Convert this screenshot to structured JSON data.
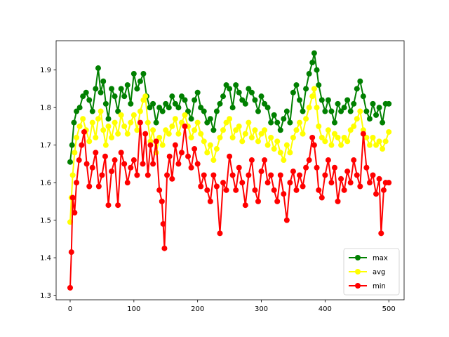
{
  "chart_data": {
    "type": "line",
    "title": "",
    "xlabel": "",
    "ylabel": "",
    "xlim": [
      -22,
      524
    ],
    "ylim": [
      1.288,
      1.978
    ],
    "xticks": [
      0,
      100,
      200,
      300,
      400,
      500
    ],
    "yticks": [
      1.3,
      1.4,
      1.5,
      1.6,
      1.7,
      1.8,
      1.9
    ],
    "ytick_labels": [
      "1.3",
      "1.4",
      "1.5",
      "1.6",
      "1.7",
      "1.8",
      "1.9"
    ],
    "grid": false,
    "legend_position": "lower-right",
    "series": [
      {
        "name": "max",
        "color": "#008000",
        "points": [
          [
            0,
            1.655
          ],
          [
            3,
            1.7
          ],
          [
            6,
            1.76
          ],
          [
            10,
            1.79
          ],
          [
            15,
            1.8
          ],
          [
            20,
            1.83
          ],
          [
            25,
            1.84
          ],
          [
            30,
            1.82
          ],
          [
            35,
            1.79
          ],
          [
            40,
            1.85
          ],
          [
            44,
            1.905
          ],
          [
            48,
            1.84
          ],
          [
            52,
            1.87
          ],
          [
            56,
            1.81
          ],
          [
            60,
            1.77
          ],
          [
            65,
            1.85
          ],
          [
            70,
            1.83
          ],
          [
            75,
            1.79
          ],
          [
            80,
            1.85
          ],
          [
            85,
            1.83
          ],
          [
            90,
            1.86
          ],
          [
            95,
            1.81
          ],
          [
            100,
            1.89
          ],
          [
            105,
            1.85
          ],
          [
            110,
            1.87
          ],
          [
            115,
            1.89
          ],
          [
            120,
            1.83
          ],
          [
            125,
            1.8
          ],
          [
            130,
            1.81
          ],
          [
            135,
            1.76
          ],
          [
            140,
            1.8
          ],
          [
            145,
            1.79
          ],
          [
            150,
            1.81
          ],
          [
            155,
            1.8
          ],
          [
            160,
            1.83
          ],
          [
            165,
            1.81
          ],
          [
            170,
            1.8
          ],
          [
            175,
            1.83
          ],
          [
            180,
            1.82
          ],
          [
            185,
            1.79
          ],
          [
            190,
            1.77
          ],
          [
            195,
            1.82
          ],
          [
            200,
            1.84
          ],
          [
            205,
            1.8
          ],
          [
            210,
            1.79
          ],
          [
            215,
            1.76
          ],
          [
            220,
            1.77
          ],
          [
            225,
            1.74
          ],
          [
            230,
            1.79
          ],
          [
            235,
            1.81
          ],
          [
            240,
            1.83
          ],
          [
            245,
            1.86
          ],
          [
            250,
            1.85
          ],
          [
            255,
            1.8
          ],
          [
            260,
            1.86
          ],
          [
            265,
            1.84
          ],
          [
            270,
            1.82
          ],
          [
            275,
            1.81
          ],
          [
            280,
            1.85
          ],
          [
            285,
            1.84
          ],
          [
            290,
            1.82
          ],
          [
            295,
            1.79
          ],
          [
            300,
            1.83
          ],
          [
            305,
            1.81
          ],
          [
            310,
            1.8
          ],
          [
            315,
            1.76
          ],
          [
            320,
            1.78
          ],
          [
            325,
            1.76
          ],
          [
            330,
            1.74
          ],
          [
            335,
            1.77
          ],
          [
            340,
            1.79
          ],
          [
            345,
            1.76
          ],
          [
            350,
            1.84
          ],
          [
            355,
            1.86
          ],
          [
            360,
            1.82
          ],
          [
            365,
            1.79
          ],
          [
            370,
            1.85
          ],
          [
            375,
            1.89
          ],
          [
            380,
            1.92
          ],
          [
            383,
            1.945
          ],
          [
            387,
            1.9
          ],
          [
            390,
            1.86
          ],
          [
            395,
            1.82
          ],
          [
            400,
            1.79
          ],
          [
            405,
            1.82
          ],
          [
            410,
            1.79
          ],
          [
            415,
            1.76
          ],
          [
            420,
            1.81
          ],
          [
            425,
            1.79
          ],
          [
            430,
            1.8
          ],
          [
            435,
            1.82
          ],
          [
            440,
            1.79
          ],
          [
            445,
            1.81
          ],
          [
            450,
            1.85
          ],
          [
            455,
            1.87
          ],
          [
            460,
            1.83
          ],
          [
            465,
            1.79
          ],
          [
            470,
            1.77
          ],
          [
            475,
            1.81
          ],
          [
            480,
            1.78
          ],
          [
            485,
            1.8
          ],
          [
            490,
            1.76
          ],
          [
            495,
            1.81
          ],
          [
            500,
            1.81
          ]
        ]
      },
      {
        "name": "avg",
        "color": "#ffff00",
        "points": [
          [
            0,
            1.495
          ],
          [
            2,
            1.56
          ],
          [
            4,
            1.62
          ],
          [
            7,
            1.68
          ],
          [
            10,
            1.72
          ],
          [
            15,
            1.75
          ],
          [
            20,
            1.77
          ],
          [
            25,
            1.74
          ],
          [
            30,
            1.71
          ],
          [
            35,
            1.76
          ],
          [
            40,
            1.72
          ],
          [
            44,
            1.77
          ],
          [
            48,
            1.79
          ],
          [
            52,
            1.74
          ],
          [
            56,
            1.7
          ],
          [
            60,
            1.75
          ],
          [
            65,
            1.72
          ],
          [
            70,
            1.76
          ],
          [
            75,
            1.73
          ],
          [
            80,
            1.78
          ],
          [
            85,
            1.75
          ],
          [
            90,
            1.73
          ],
          [
            95,
            1.76
          ],
          [
            100,
            1.78
          ],
          [
            105,
            1.74
          ],
          [
            110,
            1.79
          ],
          [
            115,
            1.82
          ],
          [
            118,
            1.83
          ],
          [
            122,
            1.76
          ],
          [
            126,
            1.71
          ],
          [
            130,
            1.74
          ],
          [
            135,
            1.68
          ],
          [
            140,
            1.72
          ],
          [
            145,
            1.7
          ],
          [
            150,
            1.74
          ],
          [
            155,
            1.73
          ],
          [
            160,
            1.75
          ],
          [
            165,
            1.77
          ],
          [
            170,
            1.73
          ],
          [
            175,
            1.76
          ],
          [
            180,
            1.78
          ],
          [
            185,
            1.75
          ],
          [
            190,
            1.72
          ],
          [
            195,
            1.74
          ],
          [
            200,
            1.76
          ],
          [
            205,
            1.73
          ],
          [
            210,
            1.71
          ],
          [
            215,
            1.68
          ],
          [
            220,
            1.7
          ],
          [
            225,
            1.66
          ],
          [
            230,
            1.69
          ],
          [
            235,
            1.72
          ],
          [
            240,
            1.74
          ],
          [
            245,
            1.76
          ],
          [
            250,
            1.77
          ],
          [
            255,
            1.72
          ],
          [
            260,
            1.74
          ],
          [
            265,
            1.75
          ],
          [
            270,
            1.71
          ],
          [
            275,
            1.73
          ],
          [
            280,
            1.76
          ],
          [
            285,
            1.72
          ],
          [
            290,
            1.74
          ],
          [
            295,
            1.71
          ],
          [
            300,
            1.73
          ],
          [
            305,
            1.74
          ],
          [
            310,
            1.7
          ],
          [
            315,
            1.72
          ],
          [
            320,
            1.69
          ],
          [
            325,
            1.71
          ],
          [
            330,
            1.68
          ],
          [
            335,
            1.66
          ],
          [
            340,
            1.7
          ],
          [
            345,
            1.68
          ],
          [
            350,
            1.72
          ],
          [
            355,
            1.74
          ],
          [
            360,
            1.76
          ],
          [
            365,
            1.73
          ],
          [
            370,
            1.77
          ],
          [
            375,
            1.8
          ],
          [
            380,
            1.83
          ],
          [
            383,
            1.85
          ],
          [
            387,
            1.8
          ],
          [
            390,
            1.75
          ],
          [
            395,
            1.72
          ],
          [
            400,
            1.71
          ],
          [
            405,
            1.74
          ],
          [
            410,
            1.7
          ],
          [
            415,
            1.73
          ],
          [
            420,
            1.72
          ],
          [
            425,
            1.7
          ],
          [
            430,
            1.72
          ],
          [
            435,
            1.71
          ],
          [
            440,
            1.74
          ],
          [
            445,
            1.75
          ],
          [
            450,
            1.77
          ],
          [
            455,
            1.79
          ],
          [
            460,
            1.74
          ],
          [
            465,
            1.72
          ],
          [
            470,
            1.7
          ],
          [
            475,
            1.72
          ],
          [
            480,
            1.7
          ],
          [
            485,
            1.71
          ],
          [
            490,
            1.69
          ],
          [
            495,
            1.71
          ],
          [
            500,
            1.735
          ]
        ]
      },
      {
        "name": "min",
        "color": "#ff0000",
        "points": [
          [
            0,
            1.32
          ],
          [
            2,
            1.415
          ],
          [
            4,
            1.56
          ],
          [
            7,
            1.52
          ],
          [
            10,
            1.6
          ],
          [
            14,
            1.66
          ],
          [
            18,
            1.7
          ],
          [
            22,
            1.735
          ],
          [
            26,
            1.65
          ],
          [
            30,
            1.59
          ],
          [
            35,
            1.64
          ],
          [
            40,
            1.68
          ],
          [
            45,
            1.59
          ],
          [
            50,
            1.62
          ],
          [
            55,
            1.67
          ],
          [
            60,
            1.54
          ],
          [
            65,
            1.63
          ],
          [
            70,
            1.66
          ],
          [
            75,
            1.54
          ],
          [
            80,
            1.68
          ],
          [
            85,
            1.65
          ],
          [
            90,
            1.6
          ],
          [
            95,
            1.64
          ],
          [
            100,
            1.66
          ],
          [
            105,
            1.62
          ],
          [
            110,
            1.76
          ],
          [
            114,
            1.65
          ],
          [
            118,
            1.73
          ],
          [
            122,
            1.62
          ],
          [
            126,
            1.7
          ],
          [
            130,
            1.65
          ],
          [
            135,
            1.71
          ],
          [
            140,
            1.58
          ],
          [
            144,
            1.55
          ],
          [
            146,
            1.49
          ],
          [
            148,
            1.425
          ],
          [
            152,
            1.62
          ],
          [
            156,
            1.67
          ],
          [
            160,
            1.61
          ],
          [
            165,
            1.7
          ],
          [
            170,
            1.65
          ],
          [
            175,
            1.68
          ],
          [
            180,
            1.75
          ],
          [
            185,
            1.67
          ],
          [
            190,
            1.64
          ],
          [
            195,
            1.69
          ],
          [
            200,
            1.65
          ],
          [
            205,
            1.59
          ],
          [
            210,
            1.62
          ],
          [
            215,
            1.58
          ],
          [
            220,
            1.55
          ],
          [
            225,
            1.62
          ],
          [
            230,
            1.59
          ],
          [
            235,
            1.465
          ],
          [
            240,
            1.6
          ],
          [
            245,
            1.58
          ],
          [
            250,
            1.67
          ],
          [
            255,
            1.62
          ],
          [
            260,
            1.58
          ],
          [
            265,
            1.64
          ],
          [
            270,
            1.6
          ],
          [
            275,
            1.54
          ],
          [
            280,
            1.62
          ],
          [
            285,
            1.66
          ],
          [
            290,
            1.58
          ],
          [
            295,
            1.55
          ],
          [
            300,
            1.63
          ],
          [
            305,
            1.66
          ],
          [
            310,
            1.6
          ],
          [
            315,
            1.62
          ],
          [
            320,
            1.58
          ],
          [
            325,
            1.55
          ],
          [
            330,
            1.62
          ],
          [
            335,
            1.57
          ],
          [
            340,
            1.5
          ],
          [
            345,
            1.6
          ],
          [
            350,
            1.63
          ],
          [
            355,
            1.58
          ],
          [
            360,
            1.62
          ],
          [
            365,
            1.59
          ],
          [
            370,
            1.64
          ],
          [
            375,
            1.66
          ],
          [
            380,
            1.72
          ],
          [
            383,
            1.7
          ],
          [
            387,
            1.64
          ],
          [
            390,
            1.58
          ],
          [
            395,
            1.56
          ],
          [
            400,
            1.62
          ],
          [
            405,
            1.66
          ],
          [
            410,
            1.6
          ],
          [
            415,
            1.64
          ],
          [
            420,
            1.55
          ],
          [
            425,
            1.61
          ],
          [
            430,
            1.58
          ],
          [
            435,
            1.63
          ],
          [
            440,
            1.6
          ],
          [
            445,
            1.66
          ],
          [
            450,
            1.62
          ],
          [
            455,
            1.59
          ],
          [
            460,
            1.73
          ],
          [
            465,
            1.64
          ],
          [
            470,
            1.6
          ],
          [
            475,
            1.62
          ],
          [
            480,
            1.57
          ],
          [
            485,
            1.61
          ],
          [
            488,
            1.465
          ],
          [
            492,
            1.58
          ],
          [
            495,
            1.6
          ],
          [
            500,
            1.6
          ]
        ]
      }
    ]
  }
}
